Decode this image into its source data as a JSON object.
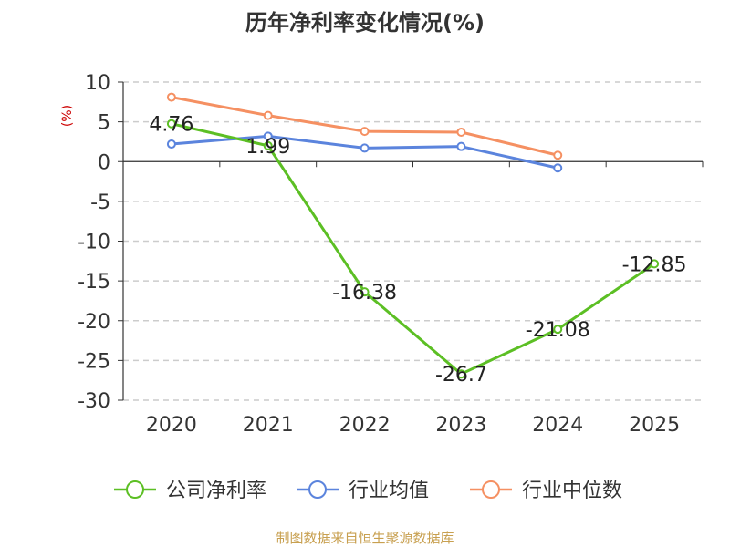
{
  "chart_data": {
    "type": "line",
    "title": "历年净利率变化情况(%)",
    "ylabel": "(%)",
    "xlabel": "",
    "categories": [
      "2020",
      "2021",
      "2022",
      "2023",
      "2024",
      "2025"
    ],
    "ylim": [
      -30,
      10
    ],
    "yticks": [
      10,
      5,
      0,
      -5,
      -10,
      -15,
      -20,
      -25,
      -30
    ],
    "grid": true,
    "legend_position": "bottom",
    "series": [
      {
        "name": "公司净利率",
        "color": "#5cbf24",
        "values": [
          4.76,
          1.99,
          -16.38,
          -26.7,
          -21.08,
          -12.85
        ],
        "labels": [
          "4.76",
          "1.99",
          "-16.38",
          "-26.7",
          "-21.08",
          "-12.85"
        ]
      },
      {
        "name": "行业均值",
        "color": "#5b84dd",
        "values": [
          2.2,
          3.2,
          1.7,
          1.9,
          -0.8,
          null
        ]
      },
      {
        "name": "行业中位数",
        "color": "#f59062",
        "values": [
          8.1,
          5.8,
          3.8,
          3.7,
          0.8,
          null
        ]
      }
    ],
    "source": "制图数据来自恒生聚源数据库",
    "colors": {
      "title": "#333333",
      "ylabel": "#cc0000",
      "source": "#c8a050",
      "axis": "#333333",
      "grid": "#cccccc"
    }
  }
}
